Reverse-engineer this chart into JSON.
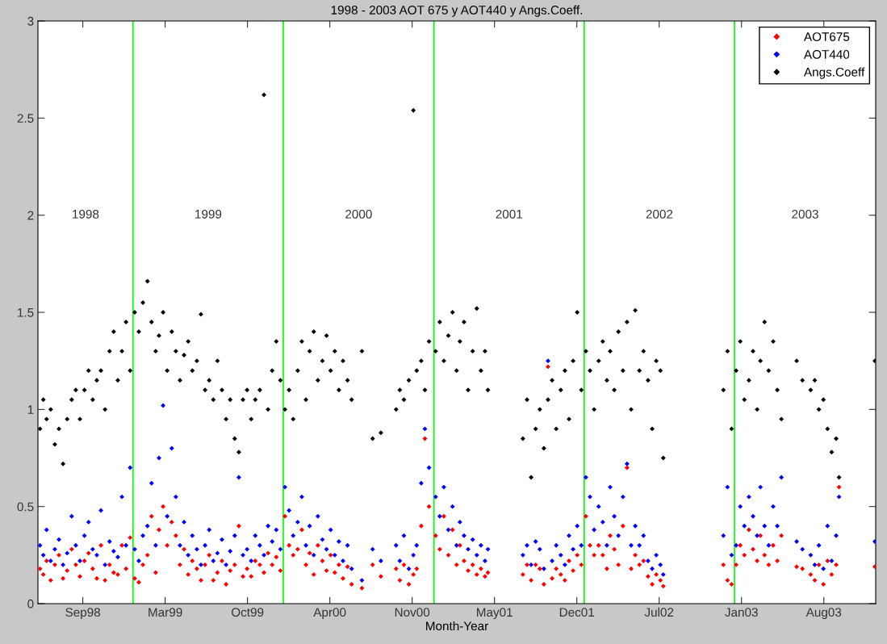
{
  "chart_data": {
    "type": "scatter",
    "title": "1998 - 2003 AOT 675 y AOT440 y Angs.Coeff.",
    "xlabel": "Month-Year",
    "x": [
      "1998-05-20",
      "1998-05-28",
      "1998-06-05",
      "1998-06-15",
      "1998-06-25",
      "1998-07-05",
      "1998-07-15",
      "1998-07-25",
      "1998-08-05",
      "1998-08-15",
      "1998-08-25",
      "1998-09-05",
      "1998-09-15",
      "1998-09-25",
      "1998-10-05",
      "1998-10-15",
      "1998-10-25",
      "1998-11-05",
      "1998-11-15",
      "1998-11-25",
      "1998-12-05",
      "1998-12-15",
      "1998-12-25",
      "1999-01-05",
      "1999-01-15",
      "1999-01-25",
      "1999-02-05",
      "1999-02-15",
      "1999-02-25",
      "1999-03-05",
      "1999-03-15",
      "1999-03-25",
      "1999-04-05",
      "1999-04-15",
      "1999-04-25",
      "1999-05-05",
      "1999-05-15",
      "1999-05-25",
      "1999-06-05",
      "1999-06-15",
      "1999-06-25",
      "1999-07-05",
      "1999-07-15",
      "1999-07-25",
      "1999-08-05",
      "1999-08-15",
      "1999-08-25",
      "1999-09-05",
      "1999-09-15",
      "1999-09-25",
      "1999-10-05",
      "1999-10-15",
      "1999-10-25",
      "1999-11-05",
      "1999-11-15",
      "1999-11-25",
      "1999-12-05",
      "1999-12-15",
      "1999-12-25",
      "2000-01-05",
      "2000-01-15",
      "2000-01-25",
      "2000-02-05",
      "2000-02-15",
      "2000-02-25",
      "2000-03-05",
      "2000-03-15",
      "2000-03-25",
      "2000-04-05",
      "2000-04-15",
      "2000-04-25",
      "2000-05-05",
      "2000-05-15",
      "2000-05-25",
      "2000-06-05",
      "2000-06-15",
      "2000-07-10",
      "2000-08-05",
      "2000-08-25",
      "2000-10-01",
      "2000-10-10",
      "2000-10-20",
      "2000-11-01",
      "2000-11-12",
      "2000-11-20",
      "2000-12-01",
      "2000-12-10",
      "2000-12-20",
      "2001-01-05",
      "2001-01-15",
      "2001-01-25",
      "2001-02-05",
      "2001-02-15",
      "2001-02-25",
      "2001-03-05",
      "2001-03-15",
      "2001-03-25",
      "2001-04-05",
      "2001-04-15",
      "2001-04-25",
      "2001-05-05",
      "2001-05-12",
      "2001-08-05",
      "2001-08-15",
      "2001-08-25",
      "2001-09-05",
      "2001-09-15",
      "2001-09-25",
      "2001-10-05",
      "2001-10-15",
      "2001-10-25",
      "2001-11-05",
      "2001-11-15",
      "2001-11-25",
      "2001-12-05",
      "2001-12-15",
      "2001-12-25",
      "2002-01-05",
      "2002-01-15",
      "2002-01-25",
      "2002-02-05",
      "2002-02-15",
      "2002-02-25",
      "2002-03-05",
      "2002-03-15",
      "2002-03-25",
      "2002-04-05",
      "2002-04-15",
      "2002-04-25",
      "2002-05-05",
      "2002-05-15",
      "2002-05-25",
      "2002-06-05",
      "2002-06-15",
      "2002-06-25",
      "2002-07-05",
      "2002-07-12",
      "2002-12-05",
      "2002-12-15",
      "2002-12-25",
      "2003-01-05",
      "2003-01-15",
      "2003-01-25",
      "2003-02-05",
      "2003-02-15",
      "2003-02-25",
      "2003-03-05",
      "2003-03-15",
      "2003-03-25",
      "2003-04-05",
      "2003-04-15",
      "2003-04-25",
      "2003-06-01",
      "2003-06-15",
      "2003-07-05",
      "2003-07-15",
      "2003-07-25",
      "2003-08-05",
      "2003-08-15",
      "2003-08-25",
      "2003-09-05",
      "2003-09-12",
      "2003-12-08"
    ],
    "series": [
      {
        "name": "AOT675",
        "color": "#ff0000",
        "values": [
          0.18,
          0.15,
          0.22,
          0.12,
          0.2,
          0.25,
          0.13,
          0.17,
          0.28,
          0.2,
          0.14,
          0.22,
          0.26,
          0.18,
          0.13,
          0.3,
          0.12,
          0.2,
          0.16,
          0.15,
          0.3,
          0.18,
          0.34,
          0.13,
          0.11,
          0.2,
          0.25,
          0.45,
          0.16,
          0.38,
          0.5,
          0.3,
          0.42,
          0.35,
          0.2,
          0.28,
          0.15,
          0.22,
          0.18,
          0.12,
          0.2,
          0.25,
          0.12,
          0.16,
          0.22,
          0.1,
          0.17,
          0.2,
          0.4,
          0.14,
          0.18,
          0.14,
          0.22,
          0.2,
          0.16,
          0.26,
          0.2,
          0.24,
          0.17,
          0.45,
          0.3,
          0.25,
          0.28,
          0.38,
          0.2,
          0.26,
          0.15,
          0.3,
          0.22,
          0.17,
          0.25,
          0.16,
          0.2,
          0.13,
          0.19,
          0.1,
          0.08,
          0.2,
          0.14,
          0.18,
          0.12,
          0.2,
          0.1,
          0.15,
          0.18,
          0.4,
          0.85,
          0.5,
          0.35,
          0.28,
          0.45,
          0.25,
          0.38,
          0.2,
          0.3,
          0.22,
          0.17,
          0.2,
          0.15,
          0.18,
          0.14,
          0.16,
          0.15,
          0.2,
          0.12,
          0.2,
          0.18,
          0.1,
          1.22,
          0.13,
          0.18,
          0.15,
          0.12,
          0.22,
          0.17,
          0.25,
          0.2,
          0.45,
          0.3,
          0.25,
          0.3,
          0.25,
          0.18,
          0.35,
          0.28,
          0.2,
          0.4,
          0.7,
          0.18,
          0.25,
          0.2,
          0.22,
          0.14,
          0.1,
          0.15,
          0.12,
          0.09,
          0.2,
          0.12,
          0.1,
          0.2,
          0.3,
          0.25,
          0.38,
          0.28,
          0.22,
          0.35,
          0.25,
          0.2,
          0.3,
          0.22,
          0.35,
          0.19,
          0.18,
          0.15,
          0.12,
          0.2,
          0.1,
          0.22,
          0.15,
          0.2,
          0.6,
          0.19
        ]
      },
      {
        "name": "AOT440",
        "color": "#0000ff",
        "values": [
          0.3,
          0.25,
          0.38,
          0.22,
          0.28,
          0.33,
          0.2,
          0.26,
          0.45,
          0.3,
          0.22,
          0.35,
          0.42,
          0.28,
          0.25,
          0.48,
          0.2,
          0.32,
          0.27,
          0.24,
          0.55,
          0.3,
          0.7,
          0.28,
          0.22,
          0.35,
          0.4,
          0.62,
          0.3,
          0.75,
          1.02,
          0.45,
          0.8,
          0.55,
          0.3,
          0.42,
          0.25,
          0.35,
          0.28,
          0.2,
          0.3,
          0.38,
          0.22,
          0.26,
          0.33,
          0.2,
          0.27,
          0.35,
          0.65,
          0.25,
          0.28,
          0.22,
          0.35,
          0.3,
          0.25,
          0.4,
          0.32,
          0.38,
          0.28,
          0.6,
          0.48,
          0.35,
          0.42,
          0.55,
          0.3,
          0.4,
          0.25,
          0.45,
          0.33,
          0.28,
          0.38,
          0.25,
          0.32,
          0.22,
          0.3,
          0.18,
          0.12,
          0.28,
          0.22,
          0.3,
          0.22,
          0.35,
          0.18,
          0.25,
          0.3,
          0.62,
          0.9,
          0.7,
          0.55,
          0.45,
          0.6,
          0.38,
          0.5,
          0.3,
          0.42,
          0.35,
          0.28,
          0.33,
          0.25,
          0.3,
          0.22,
          0.28,
          0.25,
          0.3,
          0.2,
          0.32,
          0.28,
          0.18,
          1.25,
          0.22,
          0.3,
          0.25,
          0.2,
          0.35,
          0.28,
          0.4,
          0.3,
          0.65,
          0.55,
          0.38,
          0.5,
          0.42,
          0.3,
          0.6,
          0.45,
          0.35,
          0.55,
          0.72,
          0.3,
          0.4,
          0.3,
          0.35,
          0.22,
          0.18,
          0.25,
          0.2,
          0.15,
          0.35,
          0.6,
          0.25,
          0.3,
          0.5,
          0.4,
          0.55,
          0.45,
          0.35,
          0.6,
          0.4,
          0.3,
          0.5,
          0.4,
          0.65,
          0.32,
          0.28,
          0.25,
          0.2,
          0.3,
          0.18,
          0.4,
          0.22,
          0.35,
          0.55,
          0.32
        ]
      },
      {
        "name": "Angs.Coeff",
        "color": "#000000",
        "values": [
          0.9,
          1.05,
          0.95,
          1.0,
          0.82,
          0.9,
          0.72,
          0.95,
          1.05,
          1.1,
          0.95,
          1.1,
          1.2,
          1.05,
          1.15,
          1.2,
          1.0,
          1.3,
          1.4,
          1.15,
          1.3,
          1.45,
          1.2,
          1.5,
          1.4,
          1.55,
          1.66,
          1.45,
          1.3,
          1.38,
          1.5,
          1.2,
          1.4,
          1.3,
          1.15,
          1.28,
          1.35,
          1.2,
          1.25,
          1.49,
          1.1,
          1.15,
          1.05,
          1.25,
          1.1,
          0.95,
          1.05,
          0.85,
          0.78,
          1.05,
          1.1,
          0.95,
          1.05,
          1.1,
          2.62,
          1.0,
          1.2,
          1.35,
          1.15,
          1.0,
          1.1,
          0.95,
          1.2,
          1.35,
          1.05,
          1.3,
          1.4,
          1.15,
          1.25,
          1.38,
          1.2,
          1.3,
          1.1,
          1.25,
          1.15,
          1.05,
          1.3,
          0.85,
          0.88,
          1.0,
          1.1,
          1.05,
          1.15,
          2.54,
          1.2,
          1.25,
          1.1,
          1.35,
          1.3,
          1.45,
          1.25,
          1.38,
          1.5,
          1.2,
          1.35,
          1.45,
          1.1,
          1.3,
          1.52,
          1.2,
          1.3,
          1.1,
          0.85,
          1.05,
          0.65,
          0.9,
          1.0,
          0.8,
          1.05,
          1.15,
          0.9,
          1.1,
          1.2,
          0.95,
          1.25,
          1.5,
          1.1,
          1.3,
          1.2,
          1.0,
          1.25,
          1.35,
          1.15,
          1.3,
          1.1,
          1.4,
          1.2,
          1.45,
          1.0,
          1.51,
          1.2,
          1.3,
          1.15,
          0.9,
          1.25,
          1.2,
          0.75,
          1.1,
          1.3,
          0.9,
          1.2,
          1.35,
          1.05,
          1.15,
          1.3,
          1.0,
          1.25,
          1.45,
          1.2,
          1.35,
          1.1,
          0.95,
          1.25,
          1.15,
          1.1,
          1.15,
          1.0,
          1.05,
          0.9,
          0.78,
          0.85,
          0.65,
          1.25
        ]
      }
    ],
    "marker": "diamond",
    "xlim": [
      "1998-05-15",
      "2003-12-10"
    ],
    "xticks": [
      {
        "value": "1998-09-01",
        "label": "Sep98"
      },
      {
        "value": "1999-03-20",
        "label": "Mar99"
      },
      {
        "value": "1999-10-06",
        "label": "Oct99"
      },
      {
        "value": "2000-04-23",
        "label": "Apr00"
      },
      {
        "value": "2000-11-09",
        "label": "Nov00"
      },
      {
        "value": "2001-05-28",
        "label": "May01"
      },
      {
        "value": "2001-12-14",
        "label": "Dec01"
      },
      {
        "value": "2002-07-02",
        "label": "Jul02"
      },
      {
        "value": "2003-01-18",
        "label": "Jan03"
      },
      {
        "value": "2003-08-06",
        "label": "Aug03"
      }
    ],
    "ylim": [
      0,
      3
    ],
    "yticks": [
      0,
      0.5,
      1,
      1.5,
      2,
      2.5,
      3
    ],
    "ref_lines": [
      {
        "axis": "x",
        "value": "1999-01-01",
        "color": "#00ff00"
      },
      {
        "axis": "x",
        "value": "2000-01-01",
        "color": "#00ff00"
      },
      {
        "axis": "x",
        "value": "2001-01-01",
        "color": "#00ff00"
      },
      {
        "axis": "x",
        "value": "2002-01-01",
        "color": "#00ff00"
      },
      {
        "axis": "x",
        "value": "2003-01-01",
        "color": "#00ff00"
      }
    ],
    "annotations": [
      "1998",
      "1999",
      "2000",
      "2001",
      "2002",
      "2003"
    ],
    "legend": "top right",
    "grid": false
  }
}
